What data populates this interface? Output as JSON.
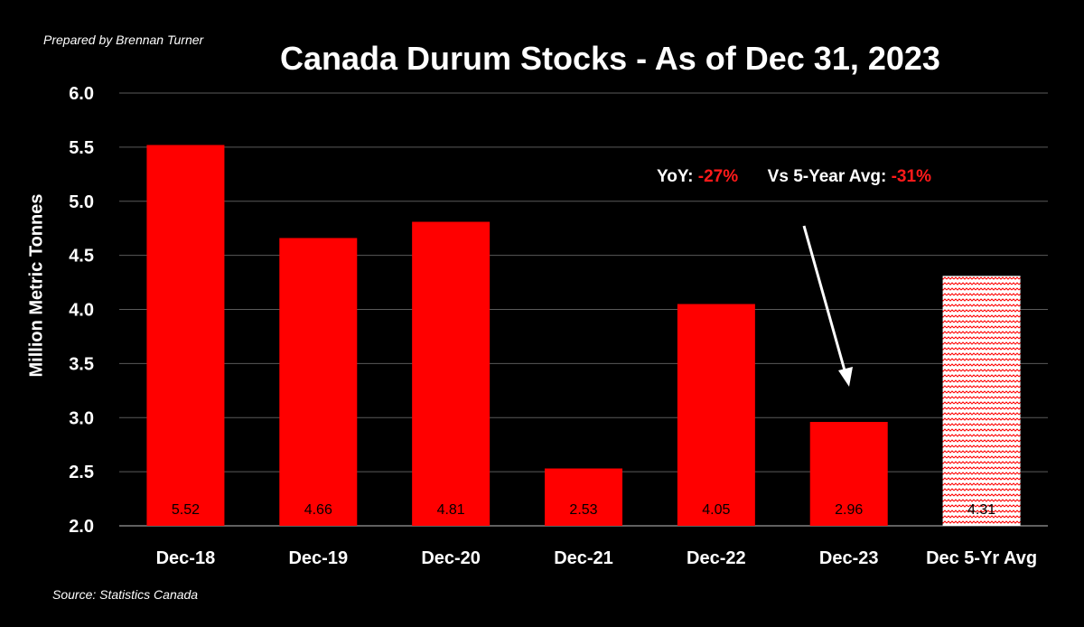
{
  "credit": "Prepared by Brennan Turner",
  "source": "Source: Statistics Canada",
  "annotation": {
    "yoy_label": "YoY:",
    "yoy_value": "-27%",
    "avg_label": "Vs 5-Year Avg:",
    "avg_value": "-31%"
  },
  "colors": {
    "bar": "#ff0000",
    "negative_text": "#ff1a1a",
    "grid": "#5a5a5a",
    "background": "#000000",
    "text": "#ffffff"
  },
  "chart_data": {
    "type": "bar",
    "title": "Canada Durum Stocks - As of Dec 31, 2023",
    "xlabel": "",
    "ylabel": "Million Metric Tonnes",
    "ylim": [
      2.0,
      6.0
    ],
    "yticks": [
      "2.0",
      "2.5",
      "3.0",
      "3.5",
      "4.0",
      "4.5",
      "5.0",
      "5.5",
      "6.0"
    ],
    "categories": [
      "Dec-18",
      "Dec-19",
      "Dec-20",
      "Dec-21",
      "Dec-22",
      "Dec-23",
      "Dec 5-Yr Avg"
    ],
    "values": [
      5.52,
      4.66,
      4.81,
      2.53,
      4.05,
      2.96,
      4.31
    ],
    "data_labels": [
      "5.52",
      "4.66",
      "4.81",
      "2.53",
      "4.05",
      "2.96",
      "4.31"
    ],
    "patterned_categories": [
      "Dec 5-Yr Avg"
    ],
    "grid": true,
    "legend": "none"
  }
}
